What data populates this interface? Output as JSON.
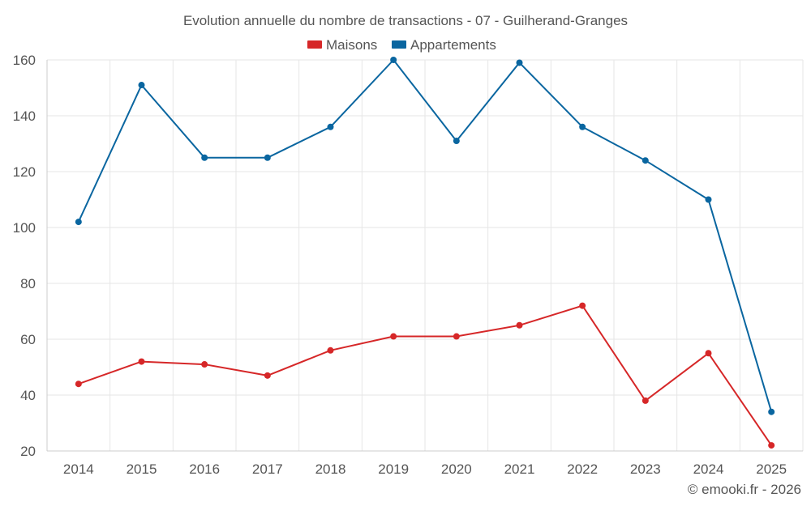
{
  "chart_data": {
    "type": "line",
    "title": "Evolution annuelle du nombre de transactions - 07 - Guilherand-Granges",
    "categories": [
      "2014",
      "2015",
      "2016",
      "2017",
      "2018",
      "2019",
      "2020",
      "2021",
      "2022",
      "2023",
      "2024",
      "2025"
    ],
    "series": [
      {
        "name": "Maisons",
        "color": "#d62728",
        "values": [
          44,
          52,
          51,
          47,
          56,
          61,
          61,
          65,
          72,
          38,
          55,
          22
        ]
      },
      {
        "name": "Appartements",
        "color": "#0a66a0",
        "values": [
          102,
          151,
          125,
          125,
          136,
          160,
          131,
          159,
          136,
          124,
          110,
          34
        ]
      }
    ],
    "ylim": [
      20,
      160
    ],
    "yticks": [
      20,
      40,
      60,
      80,
      100,
      120,
      140,
      160
    ],
    "xlabel": "",
    "ylabel": "",
    "grid": true,
    "legend": "top-center"
  },
  "credit": "© emooki.fr - 2026"
}
